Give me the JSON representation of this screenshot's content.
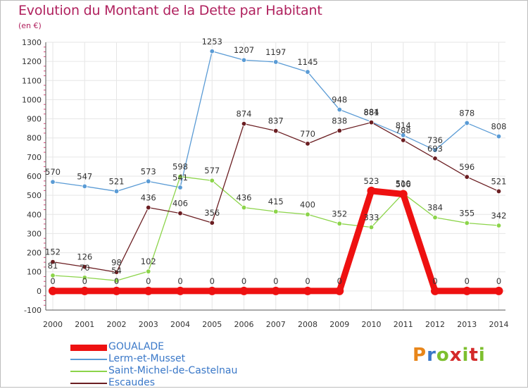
{
  "colors": {
    "title": "#b0215e",
    "axis_text": "#333333",
    "grid": "#e6e6e6",
    "axis": "#555555",
    "legend_text": "#3a78c8",
    "brand": [
      "#e8861a",
      "#3a78c8",
      "#7dbf2e",
      "#d42a2a"
    ]
  },
  "brand": {
    "letters": [
      "P",
      "r",
      "o",
      "x",
      "i",
      "t",
      "i"
    ]
  },
  "chart_data": {
    "type": "line",
    "title": "Evolution du Montant de la Dette par Habitant",
    "unit_label": "(en €)",
    "x": [
      "2000",
      "2001",
      "2002",
      "2003",
      "2004",
      "2005",
      "2006",
      "2007",
      "2008",
      "2009",
      "2010",
      "2011",
      "2012",
      "2013",
      "2014"
    ],
    "ylim": [
      -100,
      1300
    ],
    "yticks": [
      -100,
      0,
      100,
      200,
      300,
      400,
      500,
      600,
      700,
      800,
      900,
      1000,
      1100,
      1200,
      1300
    ],
    "grid": true,
    "series": [
      {
        "name": "GOUALADE",
        "color": "#ee1111",
        "values": [
          0,
          0,
          0,
          0,
          0,
          0,
          0,
          0,
          0,
          0,
          523,
          506,
          0,
          0,
          0
        ],
        "labels": [
          "0",
          "0",
          "0",
          "0",
          "0",
          "0",
          "0",
          "0",
          "0",
          "0",
          "523",
          "506",
          "0",
          "0",
          "0"
        ]
      },
      {
        "name": "Lerm-et-Musset",
        "color": "#5a9bd5",
        "values": [
          570,
          547,
          521,
          573,
          541,
          1253,
          1207,
          1197,
          1145,
          948,
          884,
          814,
          736,
          878,
          808
        ],
        "labels": [
          "570",
          "547",
          "521",
          "573",
          "541",
          "1253",
          "1207",
          "1197",
          "1145",
          "948",
          "884",
          "814",
          "736",
          "878",
          "808"
        ]
      },
      {
        "name": "Saint-Michel-de-Castelnau",
        "color": "#8cd44a",
        "values": [
          81,
          70,
          54,
          102,
          598,
          577,
          436,
          415,
          400,
          352,
          333,
          510,
          384,
          355,
          342
        ],
        "labels": [
          "81",
          "70",
          "54",
          "102",
          "598",
          "577",
          "436",
          "415",
          "400",
          "352",
          "333",
          "510",
          "384",
          "355",
          "342"
        ]
      },
      {
        "name": "Escaudes",
        "color": "#6b1e22",
        "values": [
          152,
          126,
          98,
          436,
          406,
          356,
          874,
          837,
          770,
          838,
          881,
          788,
          693,
          596,
          521
        ],
        "labels": [
          "152",
          "126",
          "98",
          "436",
          "406",
          "356",
          "874",
          "837",
          "770",
          "838",
          "881",
          "788",
          "693",
          "596",
          "521"
        ]
      }
    ]
  }
}
